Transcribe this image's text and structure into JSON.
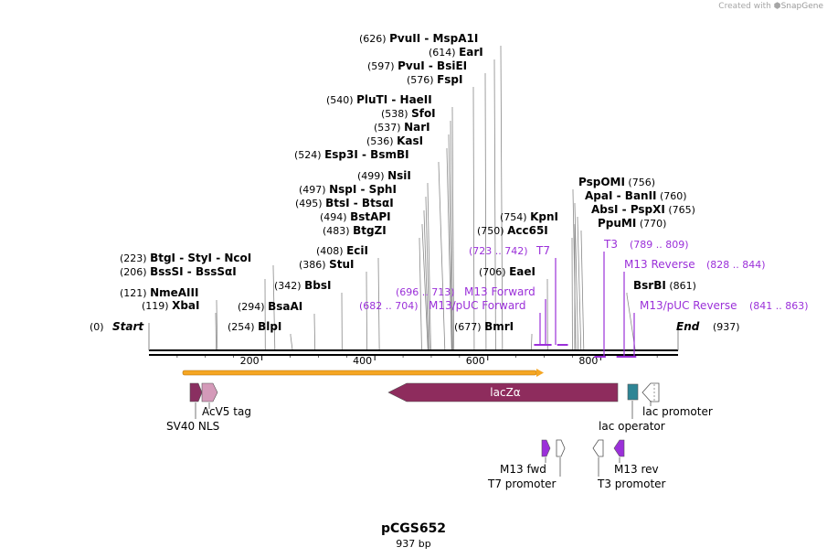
{
  "credit": {
    "prefix": "Created with",
    "brand": "SnapGene"
  },
  "plasmid": {
    "name": "pCGS652",
    "length_label": "937 bp",
    "length": 937
  },
  "ends": {
    "start_pos": "(0)",
    "start_label": "Start",
    "end_label": "End",
    "end_pos": "(937)"
  },
  "ticks": [
    "200",
    "400",
    "600",
    "800"
  ],
  "sites": [
    {
      "pos": "(626)",
      "names": [
        "PvuII",
        "MspA1I"
      ],
      "bp": 626,
      "side": "left"
    },
    {
      "pos": "(614)",
      "names": [
        "EarI"
      ],
      "bp": 614,
      "side": "left"
    },
    {
      "pos": "(597)",
      "names": [
        "PvuI",
        "BsiEI"
      ],
      "bp": 597,
      "side": "left"
    },
    {
      "pos": "(576)",
      "names": [
        "FspI"
      ],
      "bp": 576,
      "side": "left"
    },
    {
      "pos": "(540)",
      "names": [
        "PluTI",
        "HaeII"
      ],
      "bp": 540,
      "side": "left"
    },
    {
      "pos": "(538)",
      "names": [
        "SfoI"
      ],
      "bp": 538,
      "side": "left"
    },
    {
      "pos": "(537)",
      "names": [
        "NarI"
      ],
      "bp": 537,
      "side": "left"
    },
    {
      "pos": "(536)",
      "names": [
        "KasI"
      ],
      "bp": 536,
      "side": "left"
    },
    {
      "pos": "(524)",
      "names": [
        "Esp3I",
        "BsmBI"
      ],
      "bp": 524,
      "side": "left"
    },
    {
      "pos": "(499)",
      "names": [
        "NsiI"
      ],
      "bp": 499,
      "side": "left"
    },
    {
      "pos": "(497)",
      "names": [
        "NspI",
        "SphI"
      ],
      "bp": 497,
      "side": "left"
    },
    {
      "pos": "(495)",
      "names": [
        "BtsI",
        "BtsαI"
      ],
      "bp": 495,
      "side": "left"
    },
    {
      "pos": "(494)",
      "names": [
        "BstAPI"
      ],
      "bp": 494,
      "side": "left"
    },
    {
      "pos": "(483)",
      "names": [
        "BtgZI"
      ],
      "bp": 483,
      "side": "left"
    },
    {
      "pos": "(408)",
      "names": [
        "EciI"
      ],
      "bp": 408,
      "side": "left"
    },
    {
      "pos": "(386)",
      "names": [
        "StuI"
      ],
      "bp": 386,
      "side": "left"
    },
    {
      "pos": "(342)",
      "names": [
        "BbsI"
      ],
      "bp": 342,
      "side": "left"
    },
    {
      "pos": "(294)",
      "names": [
        "BsaAI"
      ],
      "bp": 294,
      "side": "left"
    },
    {
      "pos": "(254)",
      "names": [
        "BlpI"
      ],
      "bp": 254,
      "side": "left"
    },
    {
      "pos": "(223)",
      "names": [
        "BtgI",
        "StyI",
        "NcoI"
      ],
      "bp": 223,
      "side": "left"
    },
    {
      "pos": "(206)",
      "names": [
        "BssSI",
        "BssSαI"
      ],
      "bp": 206,
      "side": "left"
    },
    {
      "pos": "(121)",
      "names": [
        "NmeAIII"
      ],
      "bp": 121,
      "side": "left"
    },
    {
      "pos": "(119)",
      "names": [
        "XbaI"
      ],
      "bp": 119,
      "side": "left"
    },
    {
      "pos": "(754)",
      "names": [
        "KpnI"
      ],
      "bp": 754,
      "side": "left"
    },
    {
      "pos": "(750)",
      "names": [
        "Acc65I"
      ],
      "bp": 750,
      "side": "left"
    },
    {
      "pos": "(706)",
      "names": [
        "EaeI"
      ],
      "bp": 706,
      "side": "left"
    },
    {
      "pos": "(677)",
      "names": [
        "BmrI"
      ],
      "bp": 677,
      "side": "left"
    },
    {
      "pos": "(756)",
      "names": [
        "PspOMI"
      ],
      "bp": 756,
      "side": "right"
    },
    {
      "pos": "(760)",
      "names": [
        "ApaI",
        "BanII"
      ],
      "bp": 760,
      "side": "right"
    },
    {
      "pos": "(765)",
      "names": [
        "AbsI",
        "PspXI"
      ],
      "bp": 765,
      "side": "right"
    },
    {
      "pos": "(770)",
      "names": [
        "PpuMI"
      ],
      "bp": 770,
      "side": "right"
    },
    {
      "pos": "(861)",
      "names": [
        "BsrBI"
      ],
      "bp": 861,
      "side": "right"
    }
  ],
  "primers": [
    {
      "name": "T7",
      "range": "(723 .. 742)",
      "start": 723,
      "end": 742
    },
    {
      "name": "M13 Forward",
      "range": "(696 .. 713)",
      "start": 696,
      "end": 713
    },
    {
      "name": "M13/pUC Forward",
      "range": "(682 .. 704)",
      "start": 682,
      "end": 704
    },
    {
      "name": "T3",
      "range": "(789 .. 809)",
      "start": 789,
      "end": 809
    },
    {
      "name": "M13 Reverse",
      "range": "(828 .. 844)",
      "start": 828,
      "end": 844
    },
    {
      "name": "M13/pUC Reverse",
      "range": "(841 .. 863)",
      "start": 841,
      "end": 863
    }
  ],
  "features": [
    {
      "name": "SV40 NLS",
      "color": "#8a2f61"
    },
    {
      "name": "AcV5 tag",
      "color": "#d49ab9"
    },
    {
      "name": "lacZα",
      "color": "#8e2c5d"
    },
    {
      "name": "lac operator",
      "color": "#2e8595"
    },
    {
      "name": "lac promoter",
      "color": "#ffffff"
    },
    {
      "name": "M13 fwd",
      "color": "#9b30d9"
    },
    {
      "name": "T7 promoter",
      "color": "#ffffff"
    },
    {
      "name": "T3 promoter",
      "color": "#ffffff"
    },
    {
      "name": "M13 rev",
      "color": "#9b30d9"
    }
  ],
  "orf_color": "#f5a623"
}
